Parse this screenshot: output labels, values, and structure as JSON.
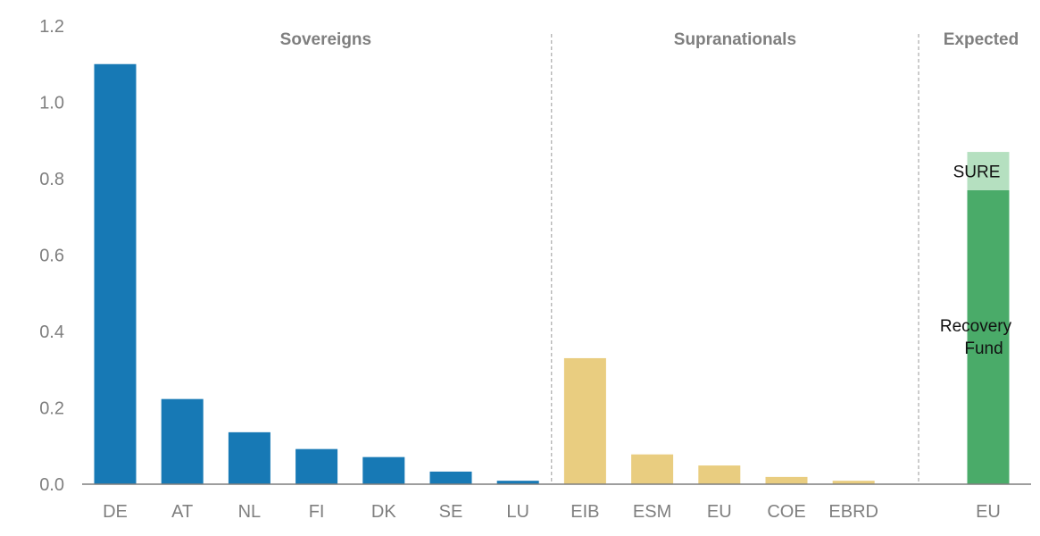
{
  "chart_data": {
    "type": "bar",
    "title": "",
    "xlabel": "",
    "ylabel": "",
    "ylim": [
      0,
      1.2
    ],
    "yticks": [
      "0.0",
      "0.2",
      "0.4",
      "0.6",
      "0.8",
      "1.0",
      "1.2"
    ],
    "grid": false,
    "groups": [
      {
        "name": "Sovereigns",
        "color": "#1779b5",
        "bars": [
          {
            "category": "DE",
            "value": 1.1
          },
          {
            "category": "AT",
            "value": 0.223
          },
          {
            "category": "NL",
            "value": 0.136
          },
          {
            "category": "FI",
            "value": 0.092
          },
          {
            "category": "DK",
            "value": 0.071
          },
          {
            "category": "SE",
            "value": 0.033
          },
          {
            "category": "LU",
            "value": 0.009
          }
        ]
      },
      {
        "name": "Supranationals",
        "color": "#e9cd80",
        "bars": [
          {
            "category": "EIB",
            "value": 0.33
          },
          {
            "category": "ESM",
            "value": 0.078
          },
          {
            "category": "EU",
            "value": 0.049
          },
          {
            "category": "COE",
            "value": 0.019
          },
          {
            "category": "EBRD",
            "value": 0.009
          }
        ]
      },
      {
        "name": "Expected",
        "bars": [
          {
            "category": "EU",
            "stacked": [
              {
                "name": "Recovery Fund",
                "label_lines": [
                  "Recovery",
                  "Fund"
                ],
                "value": 0.77,
                "color": "#4aab69"
              },
              {
                "name": "SURE",
                "label_lines": [
                  "SURE"
                ],
                "value": 0.1,
                "color": "#b5e0c0"
              }
            ]
          }
        ]
      }
    ],
    "axis_color": "#7f7f7f",
    "separator_color": "#9a9a9a"
  }
}
